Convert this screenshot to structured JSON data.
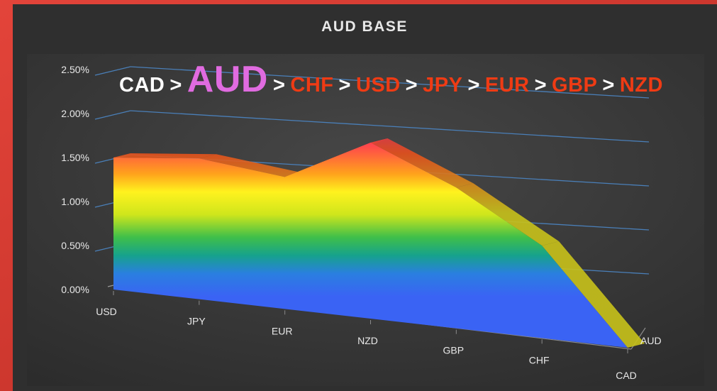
{
  "chart_data": {
    "type": "area",
    "title": "AUD BASE",
    "three_d": true,
    "categories": [
      "USD",
      "JPY",
      "EUR",
      "NZD",
      "GBP",
      "CHF",
      "CAD"
    ],
    "depth_label": "AUD",
    "series": [
      {
        "name": "AUD",
        "values": [
          1.5,
          1.6,
          1.5,
          2.0,
          1.6,
          1.05,
          0.0
        ]
      }
    ],
    "y_ticks": [
      "0.00%",
      "0.50%",
      "1.00%",
      "1.50%",
      "2.00%",
      "2.50%"
    ],
    "ylim": [
      0,
      2.5
    ],
    "grid": true,
    "annotation": {
      "ranking": [
        "CAD",
        "AUD",
        "CHF",
        "USD",
        "JPY",
        "EUR",
        "GBP",
        "NZD"
      ],
      "separator": ">",
      "highlight": "AUD"
    }
  },
  "colors": {
    "frame": "#d9382f",
    "panel": "#3a3a3a",
    "gridline": "#4a7fb8",
    "label": "#e8e8e8",
    "rank_first": "#ffffff",
    "rank_highlight": "#e06be0",
    "rank_rest": "#ef3b14"
  }
}
